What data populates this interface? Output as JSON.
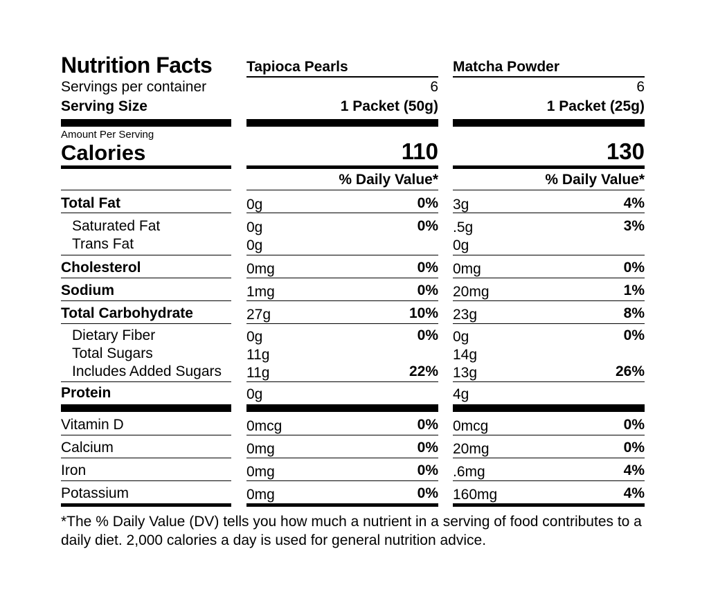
{
  "label": {
    "title": "Nutrition Facts",
    "servings_label": "Servings per container",
    "serving_size_label": "Serving Size",
    "amount_per_serving": "Amount Per Serving",
    "calories_label": "Calories",
    "daily_value_header": "% Daily Value*"
  },
  "products": [
    {
      "name": "Tapioca Pearls",
      "servings": "6",
      "serving_size": "1 Packet (50g)",
      "calories": "110"
    },
    {
      "name": "Matcha Powder",
      "servings": "6",
      "serving_size": "1 Packet (25g)",
      "calories": "130"
    }
  ],
  "nutrients": [
    {
      "name": "Total Fat",
      "amounts": [
        "0g",
        "3g"
      ],
      "dvs": [
        "0%",
        "4%"
      ]
    },
    {
      "name": "Saturated Fat",
      "amounts": [
        "0g",
        ".5g"
      ],
      "dvs": [
        "0%",
        "3%"
      ]
    },
    {
      "name": "Trans Fat",
      "amounts": [
        "0g",
        "0g"
      ],
      "dvs": [
        "",
        ""
      ]
    },
    {
      "name": "Cholesterol",
      "amounts": [
        "0mg",
        "0mg"
      ],
      "dvs": [
        "0%",
        "0%"
      ]
    },
    {
      "name": "Sodium",
      "amounts": [
        "1mg",
        "20mg"
      ],
      "dvs": [
        "0%",
        "1%"
      ]
    },
    {
      "name": "Total Carbohydrate",
      "amounts": [
        "27g",
        "23g"
      ],
      "dvs": [
        "10%",
        "8%"
      ]
    },
    {
      "name": "Dietary Fiber",
      "amounts": [
        "0g",
        "0g"
      ],
      "dvs": [
        "0%",
        "0%"
      ]
    },
    {
      "name": "Total Sugars",
      "amounts": [
        "11g",
        "14g"
      ],
      "dvs": [
        "",
        ""
      ]
    },
    {
      "name": "Includes Added Sugars",
      "amounts": [
        "11g",
        "13g"
      ],
      "dvs": [
        "22%",
        "26%"
      ]
    },
    {
      "name": "Protein",
      "amounts": [
        "0g",
        "4g"
      ],
      "dvs": [
        "",
        ""
      ]
    }
  ],
  "vitamins": [
    {
      "name": "Vitamin D",
      "amounts": [
        "0mcg",
        "0mcg"
      ],
      "dvs": [
        "0%",
        "0%"
      ]
    },
    {
      "name": "Calcium",
      "amounts": [
        "0mg",
        "20mg"
      ],
      "dvs": [
        "0%",
        "0%"
      ]
    },
    {
      "name": "Iron",
      "amounts": [
        "0mg",
        ".6mg"
      ],
      "dvs": [
        "0%",
        "4%"
      ]
    },
    {
      "name": "Potassium",
      "amounts": [
        "0mg",
        "160mg"
      ],
      "dvs": [
        "0%",
        "4%"
      ]
    }
  ],
  "footnote": "*The % Daily Value (DV) tells you how much a nutrient in a serving of food contributes to a daily diet. 2,000 calories a day is used for general nutrition advice."
}
